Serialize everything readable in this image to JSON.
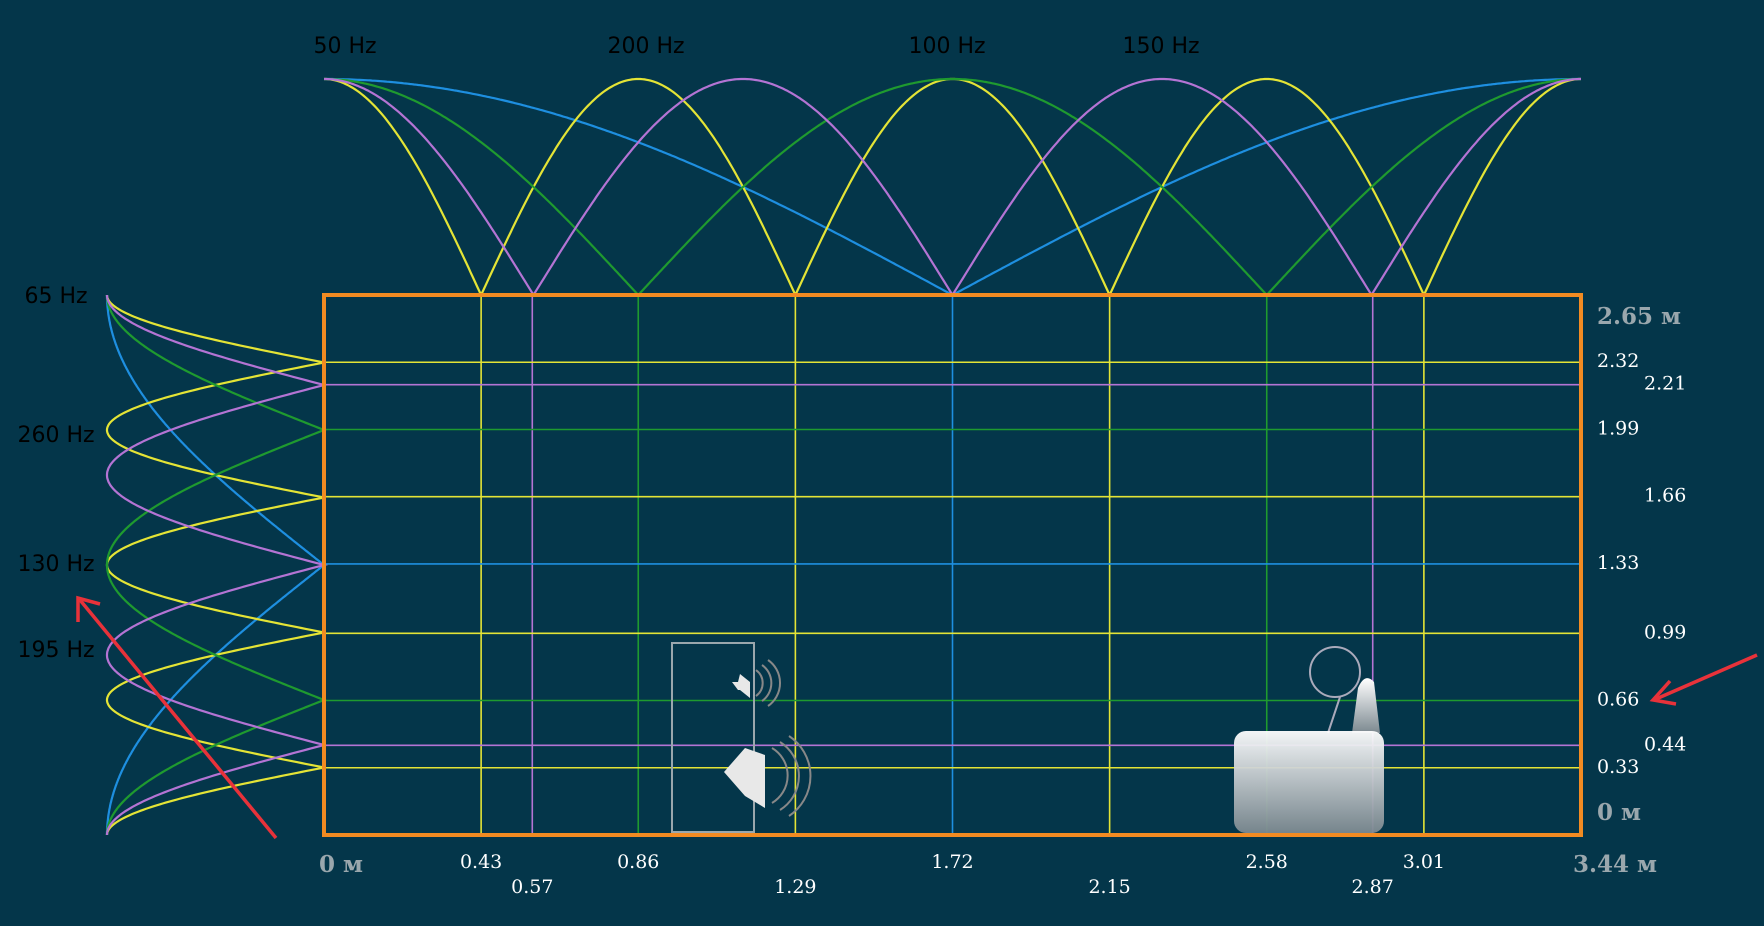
{
  "top_modes": [
    {
      "label": "50 Hz",
      "frequency": 50,
      "color": "#1e8fe0"
    },
    {
      "label": "200 Hz",
      "frequency": 200,
      "color": "#e4e436"
    },
    {
      "label": "100 Hz",
      "frequency": 100,
      "color": "#1f9a2f"
    },
    {
      "label": "150 Hz",
      "frequency": 150,
      "color": "#b474d4"
    }
  ],
  "side_modes": [
    {
      "label": "65 Hz",
      "frequency": 65,
      "color": "#1e8fe0"
    },
    {
      "label": "260 Hz",
      "frequency": 260,
      "color": "#e4e436"
    },
    {
      "label": "130 Hz",
      "frequency": 130,
      "color": "#1f9a2f"
    },
    {
      "label": "195 Hz",
      "frequency": 195,
      "color": "#b474d4"
    }
  ],
  "x_axis": {
    "ticks": [
      {
        "value": 0,
        "label": "0 м"
      },
      0.43,
      0.57,
      0.86,
      1.29,
      1.72,
      2.15,
      2.58,
      2.87,
      3.01,
      {
        "value": 3.44,
        "label": "3.44 м"
      }
    ]
  },
  "y_axis": {
    "ticks": [
      {
        "value": 2.65,
        "label": "2.65 м"
      },
      2.32,
      2.21,
      1.99,
      1.66,
      1.33,
      0.99,
      0.66,
      0.44,
      0.33,
      {
        "value": 0,
        "label": "0 м"
      }
    ]
  },
  "wall_color": "#f28b22"
}
